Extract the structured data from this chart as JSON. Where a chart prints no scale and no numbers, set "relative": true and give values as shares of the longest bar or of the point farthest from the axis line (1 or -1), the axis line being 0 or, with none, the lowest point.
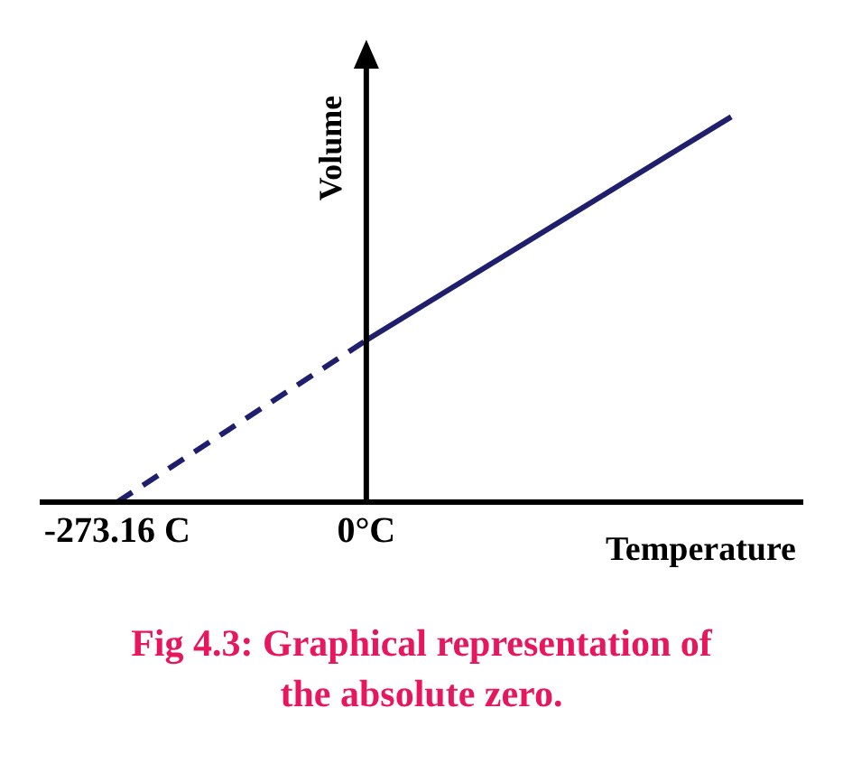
{
  "chart_data": {
    "type": "line",
    "title": "Fig 4.3: Graphical representation of the absolute zero.",
    "xlabel": "Temperature",
    "ylabel": "Volume",
    "relative": true,
    "xlim": [
      -358,
      479
    ],
    "xticks": [
      {
        "value": -273.16,
        "label": "-273.16 C"
      },
      {
        "value": 0,
        "label": "0°C"
      }
    ],
    "marker": "none",
    "series": [
      {
        "color": "#1f1f6e",
        "line_style": "dashed",
        "x": [
          -273.16,
          0
        ],
        "values": [
          0,
          0.42
        ]
      },
      {
        "color": "#1f1f6e",
        "line_style": "solid",
        "x": [
          0,
          400
        ],
        "values": [
          0.42,
          1
        ]
      }
    ]
  }
}
